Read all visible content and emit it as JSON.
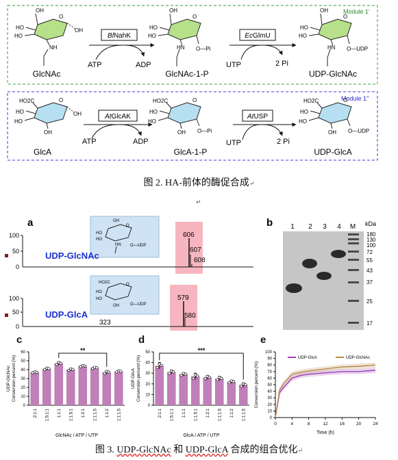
{
  "scheme": {
    "module1": {
      "label": "Module 1'",
      "compounds": [
        "GlcNAc",
        "GlcNAc-1-P",
        "UDP-GlcNAc"
      ],
      "enzyme1": "BlNahK",
      "enzyme1_italic": "Bl",
      "enzyme1_rest": "NahK",
      "enzyme2": "EcGlmU",
      "enzyme2_italic": "Ec",
      "enzyme2_rest": "GlmU",
      "cof1_in": "ATP",
      "cof1_out": "ADP",
      "cof2_in": "UTP",
      "cof2_out": "2 Pi"
    },
    "module2": {
      "label": "Module 1''",
      "compounds": [
        "GlcA",
        "GlcA-1-P",
        "UDP-GlcA"
      ],
      "enzyme1": "AtGlcAK",
      "enzyme1_italic": "At",
      "enzyme1_rest": "GlcAK",
      "enzyme2": "AtUSP",
      "enzyme2_italic": "At",
      "enzyme2_rest": "USP",
      "cof1_in": "ATP",
      "cof1_out": "ADP",
      "cof2_in": "UTP",
      "cof2_out": "2 Pi"
    },
    "struct_labels": {
      "oh": "OH",
      "ho": "HO",
      "hn": "HN",
      "nh": "NH",
      "o": "O",
      "opi": "O—Pi",
      "oudp": "O—UDP",
      "ho2c": "HO2C"
    }
  },
  "captions": {
    "fig2": "图 2. HA-前体的酶促合成",
    "fig3_prefix": "图 3. ",
    "fig3_a": "UDP-GlcNAc",
    "fig3_mid": " 和 ",
    "fig3_b": "UDP-GlcA",
    "fig3_suffix": " 合成的组合优化"
  },
  "panel_a": {
    "letter": "a",
    "top": {
      "label": "UDP-GlcNAc",
      "y_ticks": [
        "100",
        "50",
        "0"
      ],
      "peaks": [
        "606",
        "607",
        "608"
      ]
    },
    "bottom": {
      "label": "UDP-GlcA",
      "y_ticks": [
        "100",
        "50",
        "0"
      ],
      "peaks": [
        "579",
        "580"
      ],
      "extra_peak": "323"
    }
  },
  "panel_b": {
    "letter": "b",
    "lanes": [
      "1",
      "2",
      "3",
      "4",
      "M"
    ],
    "unit": "kDa",
    "markers": [
      "180",
      "130",
      "100",
      "72",
      "55",
      "43",
      "37",
      "25",
      "17"
    ]
  },
  "chart_data": [
    {
      "type": "bar",
      "panel": "c",
      "categories": [
        "2:1:1",
        "1.5:1:1",
        "1:1:1",
        "1:1.5:1",
        "1:2:1",
        "1:1:1.5",
        "1:1:2",
        "1:1:1.5"
      ],
      "values": [
        37,
        41,
        47,
        40,
        44,
        42,
        37,
        38
      ],
      "errors": [
        1,
        1.5,
        2,
        1.5,
        1,
        1,
        2,
        1
      ],
      "xlabel": "GlcNAc / ATP / UTP",
      "ylabel": "UDP-GlcNAc",
      "ylabel2": "Conversion percent (%)",
      "ylim": [
        0,
        60
      ],
      "yticks": [
        "0",
        "10",
        "20",
        "30",
        "40",
        "50",
        "60"
      ],
      "significance": "**",
      "sig_between": [
        2,
        6
      ]
    },
    {
      "type": "bar",
      "panel": "d",
      "categories": [
        "2:1:1",
        "1.5:1:1",
        "1:1:1",
        "1:1.5:1",
        "1:2:1",
        "1:1:1.5",
        "1:1:2",
        "1:1:1.5"
      ],
      "values": [
        37,
        31,
        29,
        27,
        26,
        25,
        22,
        19
      ],
      "errors": [
        3,
        2,
        1.5,
        3,
        2,
        2,
        1.5,
        2
      ],
      "xlabel": "GlcA / ATP / UTP",
      "ylabel": "UDP-GlcA",
      "ylabel2": "Conversion percent (%)",
      "ylim": [
        0,
        50
      ],
      "yticks": [
        "0",
        "10",
        "20",
        "30",
        "40",
        "50"
      ],
      "significance": "***",
      "sig_between": [
        0,
        7
      ]
    },
    {
      "type": "line",
      "panel": "e",
      "xlabel": "Time (h)",
      "ylabel": "Conversion percent (%)",
      "xlim": [
        0,
        24
      ],
      "ylim": [
        0,
        100
      ],
      "xticks": [
        "0",
        "4",
        "8",
        "12",
        "16",
        "20",
        "24"
      ],
      "yticks": [
        "0",
        "10",
        "20",
        "30",
        "40",
        "50",
        "60",
        "70",
        "80",
        "90",
        "100"
      ],
      "legend": "top",
      "series": [
        {
          "name": "UDP-GlcA",
          "color": "#9b3fb5",
          "x": [
            0,
            1,
            2,
            4,
            6,
            8,
            12,
            16,
            20,
            24
          ],
          "y": [
            0,
            38,
            46,
            60,
            64,
            66,
            68,
            70,
            70,
            72
          ]
        },
        {
          "name": "UDP-GlcNAc",
          "color": "#b8894a",
          "x": [
            0,
            1,
            2,
            4,
            6,
            8,
            12,
            16,
            20,
            24
          ],
          "y": [
            0,
            42,
            52,
            66,
            69,
            71,
            74,
            77,
            78,
            80
          ]
        }
      ]
    }
  ]
}
